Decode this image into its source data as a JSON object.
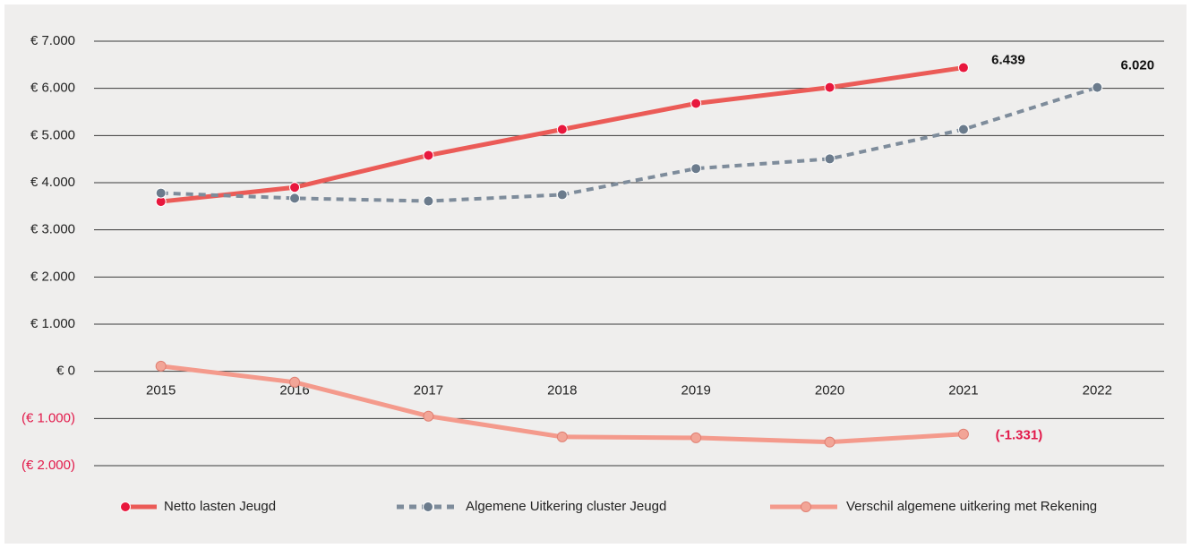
{
  "chart_data": {
    "type": "line",
    "categories": [
      "2015",
      "2016",
      "2017",
      "2018",
      "2019",
      "2020",
      "2021",
      "2022"
    ],
    "ylim": [
      -2000,
      7000
    ],
    "yticks": [
      {
        "value": 7000,
        "label": "€ 7.000"
      },
      {
        "value": 6000,
        "label": "€ 6.000"
      },
      {
        "value": 5000,
        "label": "€ 5.000"
      },
      {
        "value": 4000,
        "label": "€ 4.000"
      },
      {
        "value": 3000,
        "label": "€ 3.000"
      },
      {
        "value": 2000,
        "label": "€ 2.000"
      },
      {
        "value": 1000,
        "label": "€ 1.000"
      },
      {
        "value": 0,
        "label": "€ 0"
      },
      {
        "value": -1000,
        "label": "(€ 1.000)"
      },
      {
        "value": -2000,
        "label": "(€ 2.000)"
      }
    ],
    "grid": true,
    "negative_label_color": "#e2194a",
    "legend": "bottom",
    "series": [
      {
        "name": "Netto lasten Jeugd",
        "color": "#eb5b57",
        "marker_color": "#e8173d",
        "line_style": "solid",
        "values": [
          3600,
          3900,
          4580,
          5130,
          5680,
          6020,
          6439,
          null
        ],
        "value_labels": [
          null,
          null,
          null,
          null,
          null,
          null,
          "6.439",
          null
        ]
      },
      {
        "name": "Algemene Uitkering cluster Jeugd",
        "color": "#7e8c9b",
        "marker_color": "#6b7b8c",
        "line_style": "dotted",
        "values": [
          3780,
          3670,
          3610,
          3745,
          4300,
          4505,
          5130,
          6020
        ],
        "value_labels": [
          null,
          null,
          null,
          null,
          null,
          null,
          null,
          "6.020"
        ]
      },
      {
        "name": "Verschil algemene uitkering met Rekening",
        "color": "#f49a8c",
        "marker_color": "#f2a597",
        "line_style": "solid",
        "values": [
          110,
          -230,
          -950,
          -1390,
          -1410,
          -1500,
          -1331,
          null
        ],
        "value_labels": [
          null,
          null,
          null,
          null,
          null,
          null,
          "(-1.331)",
          null
        ]
      }
    ]
  }
}
